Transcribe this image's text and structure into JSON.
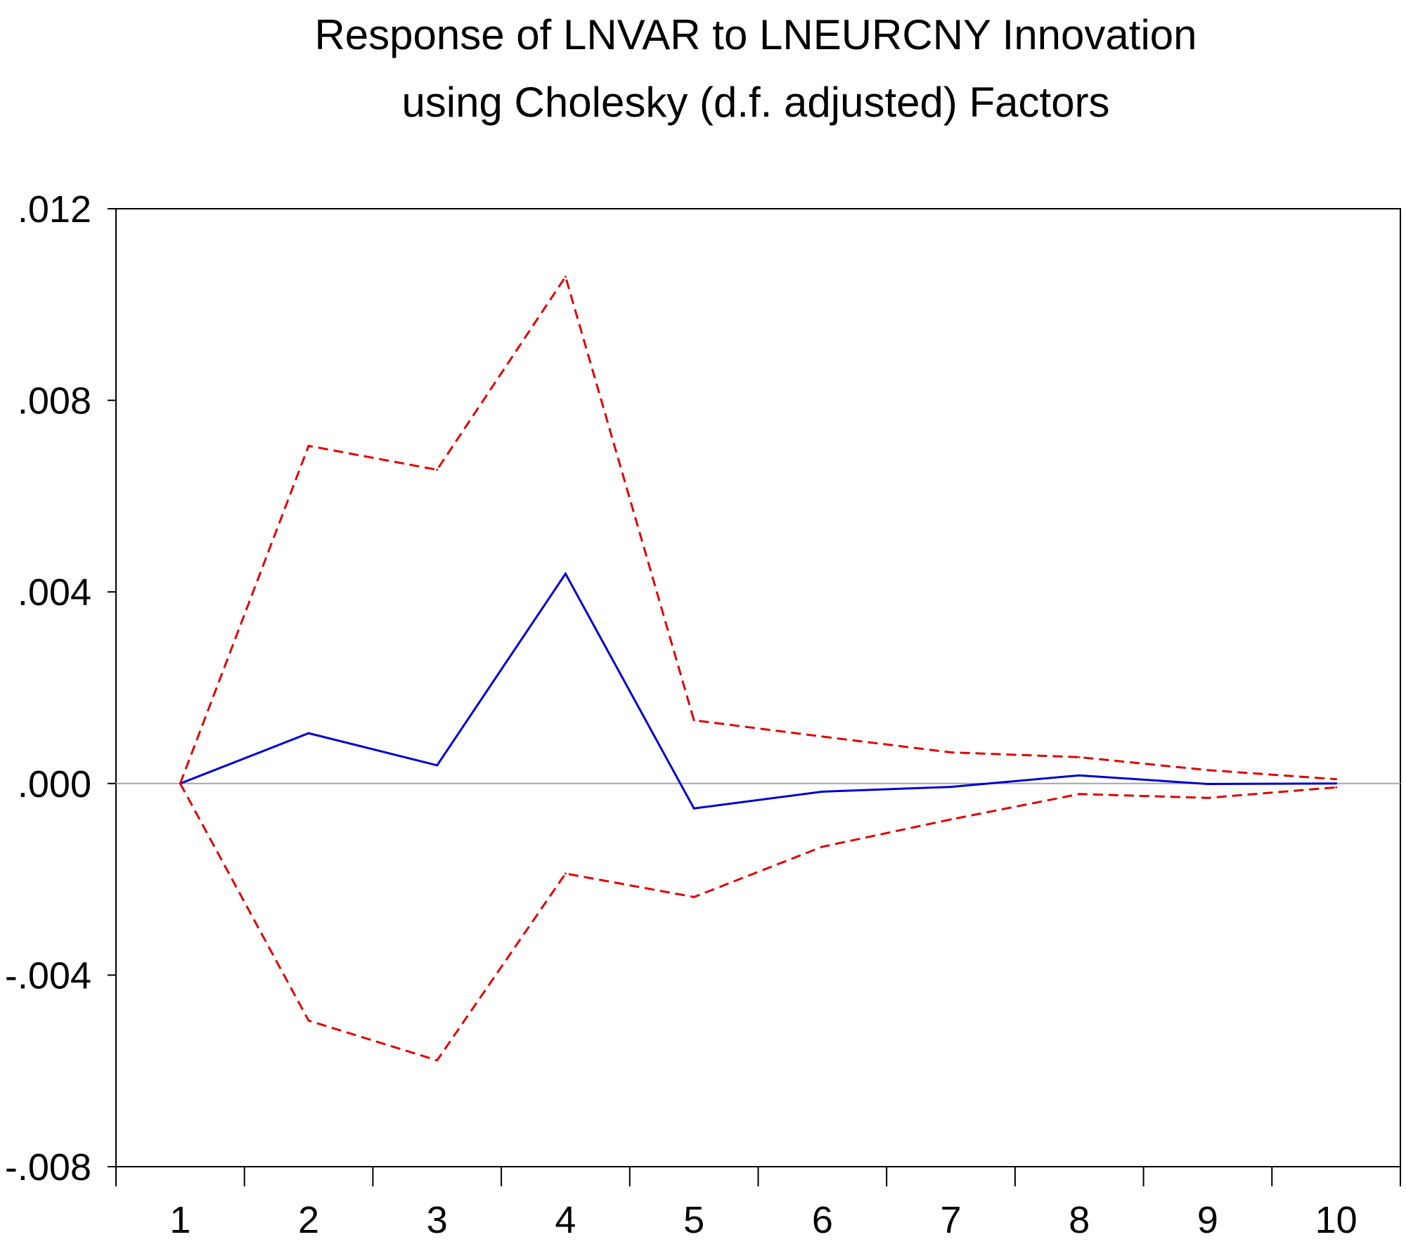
{
  "chart_data": {
    "type": "line",
    "title": [
      "Response of LNVAR to LNEURCNY Innovation",
      "using Cholesky (d.f. adjusted) Factors"
    ],
    "xlabel": "",
    "ylabel": "",
    "x": [
      1,
      2,
      3,
      4,
      5,
      6,
      7,
      8,
      9,
      10
    ],
    "xlim": [
      0.5,
      10.5
    ],
    "ylim": [
      -0.008,
      0.012
    ],
    "y_ticks": [
      -0.008,
      -0.004,
      0.0,
      0.004,
      0.008,
      0.012
    ],
    "y_tick_labels": [
      "-.008",
      "-.004",
      ".000",
      ".004",
      ".008",
      ".012"
    ],
    "x_tick_labels": [
      "1",
      "2",
      "3",
      "4",
      "5",
      "6",
      "7",
      "8",
      "9",
      "10"
    ],
    "grid": false,
    "zero_line": true,
    "series": [
      {
        "role": "response",
        "values": [
          0.0,
          0.00105,
          0.00038,
          0.00438,
          -0.00052,
          -0.00017,
          -7e-05,
          0.00017,
          -1e-05,
          0.0
        ],
        "color": "#0000cc",
        "style": "solid"
      },
      {
        "role": "upper band",
        "values": [
          0.0,
          0.00705,
          0.00655,
          0.01058,
          0.00132,
          0.00098,
          0.00065,
          0.00055,
          0.00028,
          9e-05
        ],
        "color": "#dd0000",
        "style": "dashed"
      },
      {
        "role": "lower band",
        "values": [
          0.0,
          -0.00495,
          -0.00578,
          -0.00188,
          -0.00237,
          -0.00132,
          -0.00075,
          -0.00022,
          -0.0003,
          -8e-05
        ],
        "color": "#dd0000",
        "style": "dashed"
      }
    ]
  }
}
